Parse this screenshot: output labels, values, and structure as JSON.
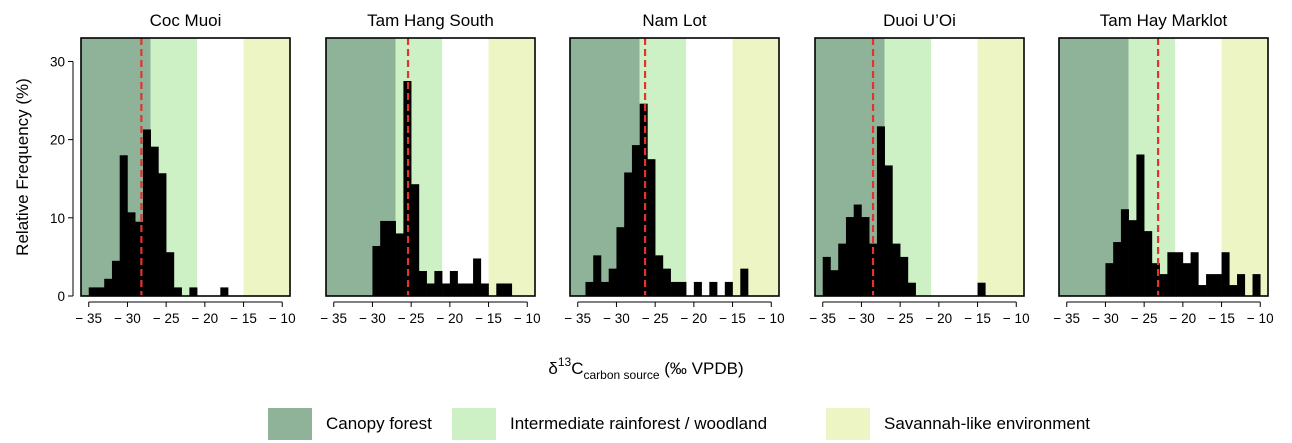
{
  "chart_data": {
    "type": "bar",
    "ylabel": "Relative Frequency (%)",
    "xlabel_main": "δ",
    "xlabel_sup": "13",
    "xlabel_c": "C",
    "xlabel_sub": "carbon source",
    "xlabel_tail": " (‰ VPDB)",
    "xlim": [
      -36,
      -9
    ],
    "ylim": [
      0,
      33
    ],
    "xticks": [
      -35,
      -30,
      -25,
      -20,
      -15,
      -10
    ],
    "xtick_labels": [
      "− 35",
      "− 30",
      "− 25",
      "− 20",
      "− 15",
      "− 10"
    ],
    "yticks": [
      0,
      10,
      20,
      30
    ],
    "ytick_labels": [
      "0",
      "10",
      "20",
      "30"
    ],
    "bin_width": 1,
    "zones": [
      {
        "name": "Canopy forest",
        "from": -36,
        "to": -27,
        "color": "#8fb398"
      },
      {
        "name": "Intermediate rainforest / woodland",
        "from": -27,
        "to": -21,
        "color": "#cdf0c5"
      },
      {
        "name": "Savannah-like environment",
        "from": -15,
        "to": -9,
        "color": "#eef5c5"
      }
    ],
    "panels": [
      {
        "title": "Coc Muoi",
        "mean": -28.2,
        "bins": [
          [
            -35,
            1.1
          ],
          [
            -34,
            1.1
          ],
          [
            -33,
            2.2
          ],
          [
            -32,
            4.5
          ],
          [
            -31,
            18.0
          ],
          [
            -30,
            10.7
          ],
          [
            -29,
            9.5
          ],
          [
            -28,
            21.3
          ],
          [
            -27,
            19.1
          ],
          [
            -26,
            15.7
          ],
          [
            -25,
            5.6
          ],
          [
            -24,
            1.1
          ],
          [
            -22,
            1.1
          ],
          [
            -18,
            1.1
          ]
        ]
      },
      {
        "title": "Tam Hang South",
        "mean": -25.4,
        "bins": [
          [
            -30,
            6.4
          ],
          [
            -29,
            9.6
          ],
          [
            -28,
            9.6
          ],
          [
            -27,
            8.0
          ],
          [
            -26,
            27.5
          ],
          [
            -25,
            14.3
          ],
          [
            -24,
            3.2
          ],
          [
            -23,
            1.6
          ],
          [
            -22,
            3.2
          ],
          [
            -21,
            1.6
          ],
          [
            -20,
            3.2
          ],
          [
            -19,
            1.6
          ],
          [
            -18,
            1.6
          ],
          [
            -17,
            4.8
          ],
          [
            -16,
            1.6
          ],
          [
            -14,
            1.6
          ],
          [
            -13,
            1.6
          ]
        ]
      },
      {
        "title": "Nam Lot",
        "mean": -26.3,
        "bins": [
          [
            -34,
            1.8
          ],
          [
            -33,
            5.2
          ],
          [
            -32,
            1.8
          ],
          [
            -31,
            3.5
          ],
          [
            -30,
            8.8
          ],
          [
            -29,
            15.8
          ],
          [
            -28,
            19.3
          ],
          [
            -27,
            24.6
          ],
          [
            -26,
            17.5
          ],
          [
            -25,
            5.2
          ],
          [
            -24,
            3.5
          ],
          [
            -23,
            1.8
          ],
          [
            -22,
            1.8
          ],
          [
            -20,
            1.8
          ],
          [
            -18,
            1.8
          ],
          [
            -16,
            1.8
          ],
          [
            -14,
            3.5
          ]
        ]
      },
      {
        "title": "Duoi U’Oi",
        "mean": -28.5,
        "bins": [
          [
            -35,
            5.0
          ],
          [
            -34,
            3.3
          ],
          [
            -33,
            6.7
          ],
          [
            -32,
            10.1
          ],
          [
            -31,
            11.7
          ],
          [
            -30,
            10.1
          ],
          [
            -29,
            6.7
          ],
          [
            -28,
            21.7
          ],
          [
            -27,
            16.7
          ],
          [
            -26,
            6.7
          ],
          [
            -25,
            5.0
          ],
          [
            -24,
            1.7
          ],
          [
            -15,
            1.7
          ]
        ]
      },
      {
        "title": "Tam Hay Marklot",
        "mean": -23.2,
        "bins": [
          [
            -30,
            4.2
          ],
          [
            -29,
            6.9
          ],
          [
            -28,
            11.1
          ],
          [
            -27,
            9.7
          ],
          [
            -26,
            18.1
          ],
          [
            -25,
            8.3
          ],
          [
            -24,
            4.2
          ],
          [
            -23,
            2.8
          ],
          [
            -22,
            5.6
          ],
          [
            -21,
            5.6
          ],
          [
            -20,
            4.2
          ],
          [
            -19,
            5.6
          ],
          [
            -18,
            1.4
          ],
          [
            -17,
            2.8
          ],
          [
            -16,
            2.8
          ],
          [
            -15,
            5.6
          ],
          [
            -14,
            1.4
          ],
          [
            -13,
            2.8
          ],
          [
            -11,
            2.8
          ]
        ]
      }
    ]
  },
  "legend": [
    {
      "label": "Canopy forest",
      "color": "#8fb398"
    },
    {
      "label": "Intermediate rainforest / woodland",
      "color": "#cdf0c5"
    },
    {
      "label": "Savannah-like environment",
      "color": "#eef5c5"
    }
  ]
}
